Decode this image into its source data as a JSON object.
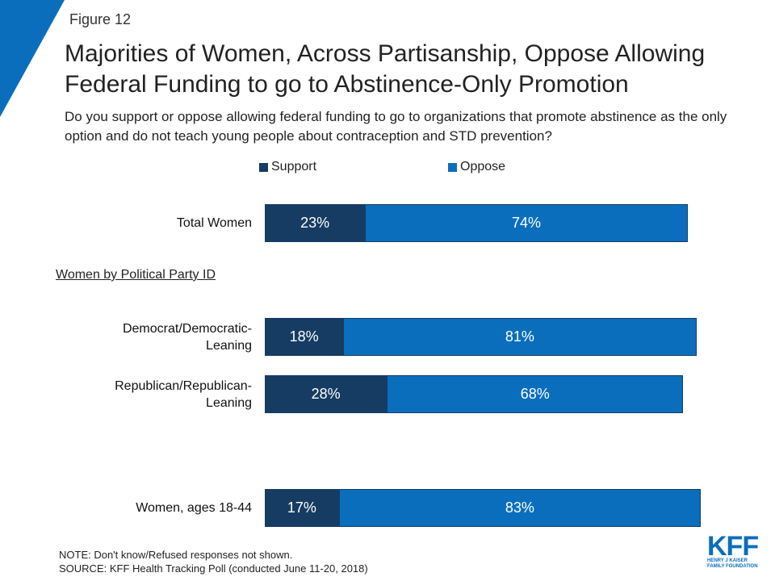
{
  "figure_label": "Figure 12",
  "colors": {
    "support": "#163c63",
    "oppose": "#0a6ebd",
    "corner": "#0a6ebd"
  },
  "legend": {
    "support": "Support",
    "oppose": "Oppose"
  },
  "group_label": "Women by Political Party ID",
  "notes": {
    "note": "NOTE: Don't know/Refused responses not shown.",
    "source": "SOURCE: KFF Health Tracking Poll (conducted June 11-20, 2018)"
  },
  "logo": {
    "text": "KFF",
    "line1": "HENRY J KAISER",
    "line2": "FAMILY FOUNDATION"
  },
  "chart_data": {
    "type": "bar",
    "orientation": "horizontal",
    "stacked": true,
    "title": "Majorities of Women, Across Partisanship, Oppose Allowing Federal Funding to go to Abstinence-Only Promotion",
    "subtitle": "Do you support or oppose allowing federal funding to go to organizations that promote abstinence as the only option and do not teach young people about contraception and STD prevention?",
    "categories": [
      "Total Women",
      "Democrat/Democratic-Leaning",
      "Republican/Republican-Leaning",
      "Women, ages 18-44"
    ],
    "category_lines": [
      [
        "Total Women"
      ],
      [
        "Democrat/Democratic-",
        "Leaning"
      ],
      [
        "Republican/Republican-",
        "Leaning"
      ],
      [
        "Women, ages 18-44"
      ]
    ],
    "series": [
      {
        "name": "Support",
        "values": [
          23,
          18,
          28,
          17
        ],
        "labels": [
          "23%",
          "18%",
          "28%",
          "17%"
        ]
      },
      {
        "name": "Oppose",
        "values": [
          74,
          81,
          68,
          83
        ],
        "labels": [
          "74%",
          "81%",
          "68%",
          "83%"
        ]
      }
    ],
    "legend_position": "top",
    "grid": false
  }
}
